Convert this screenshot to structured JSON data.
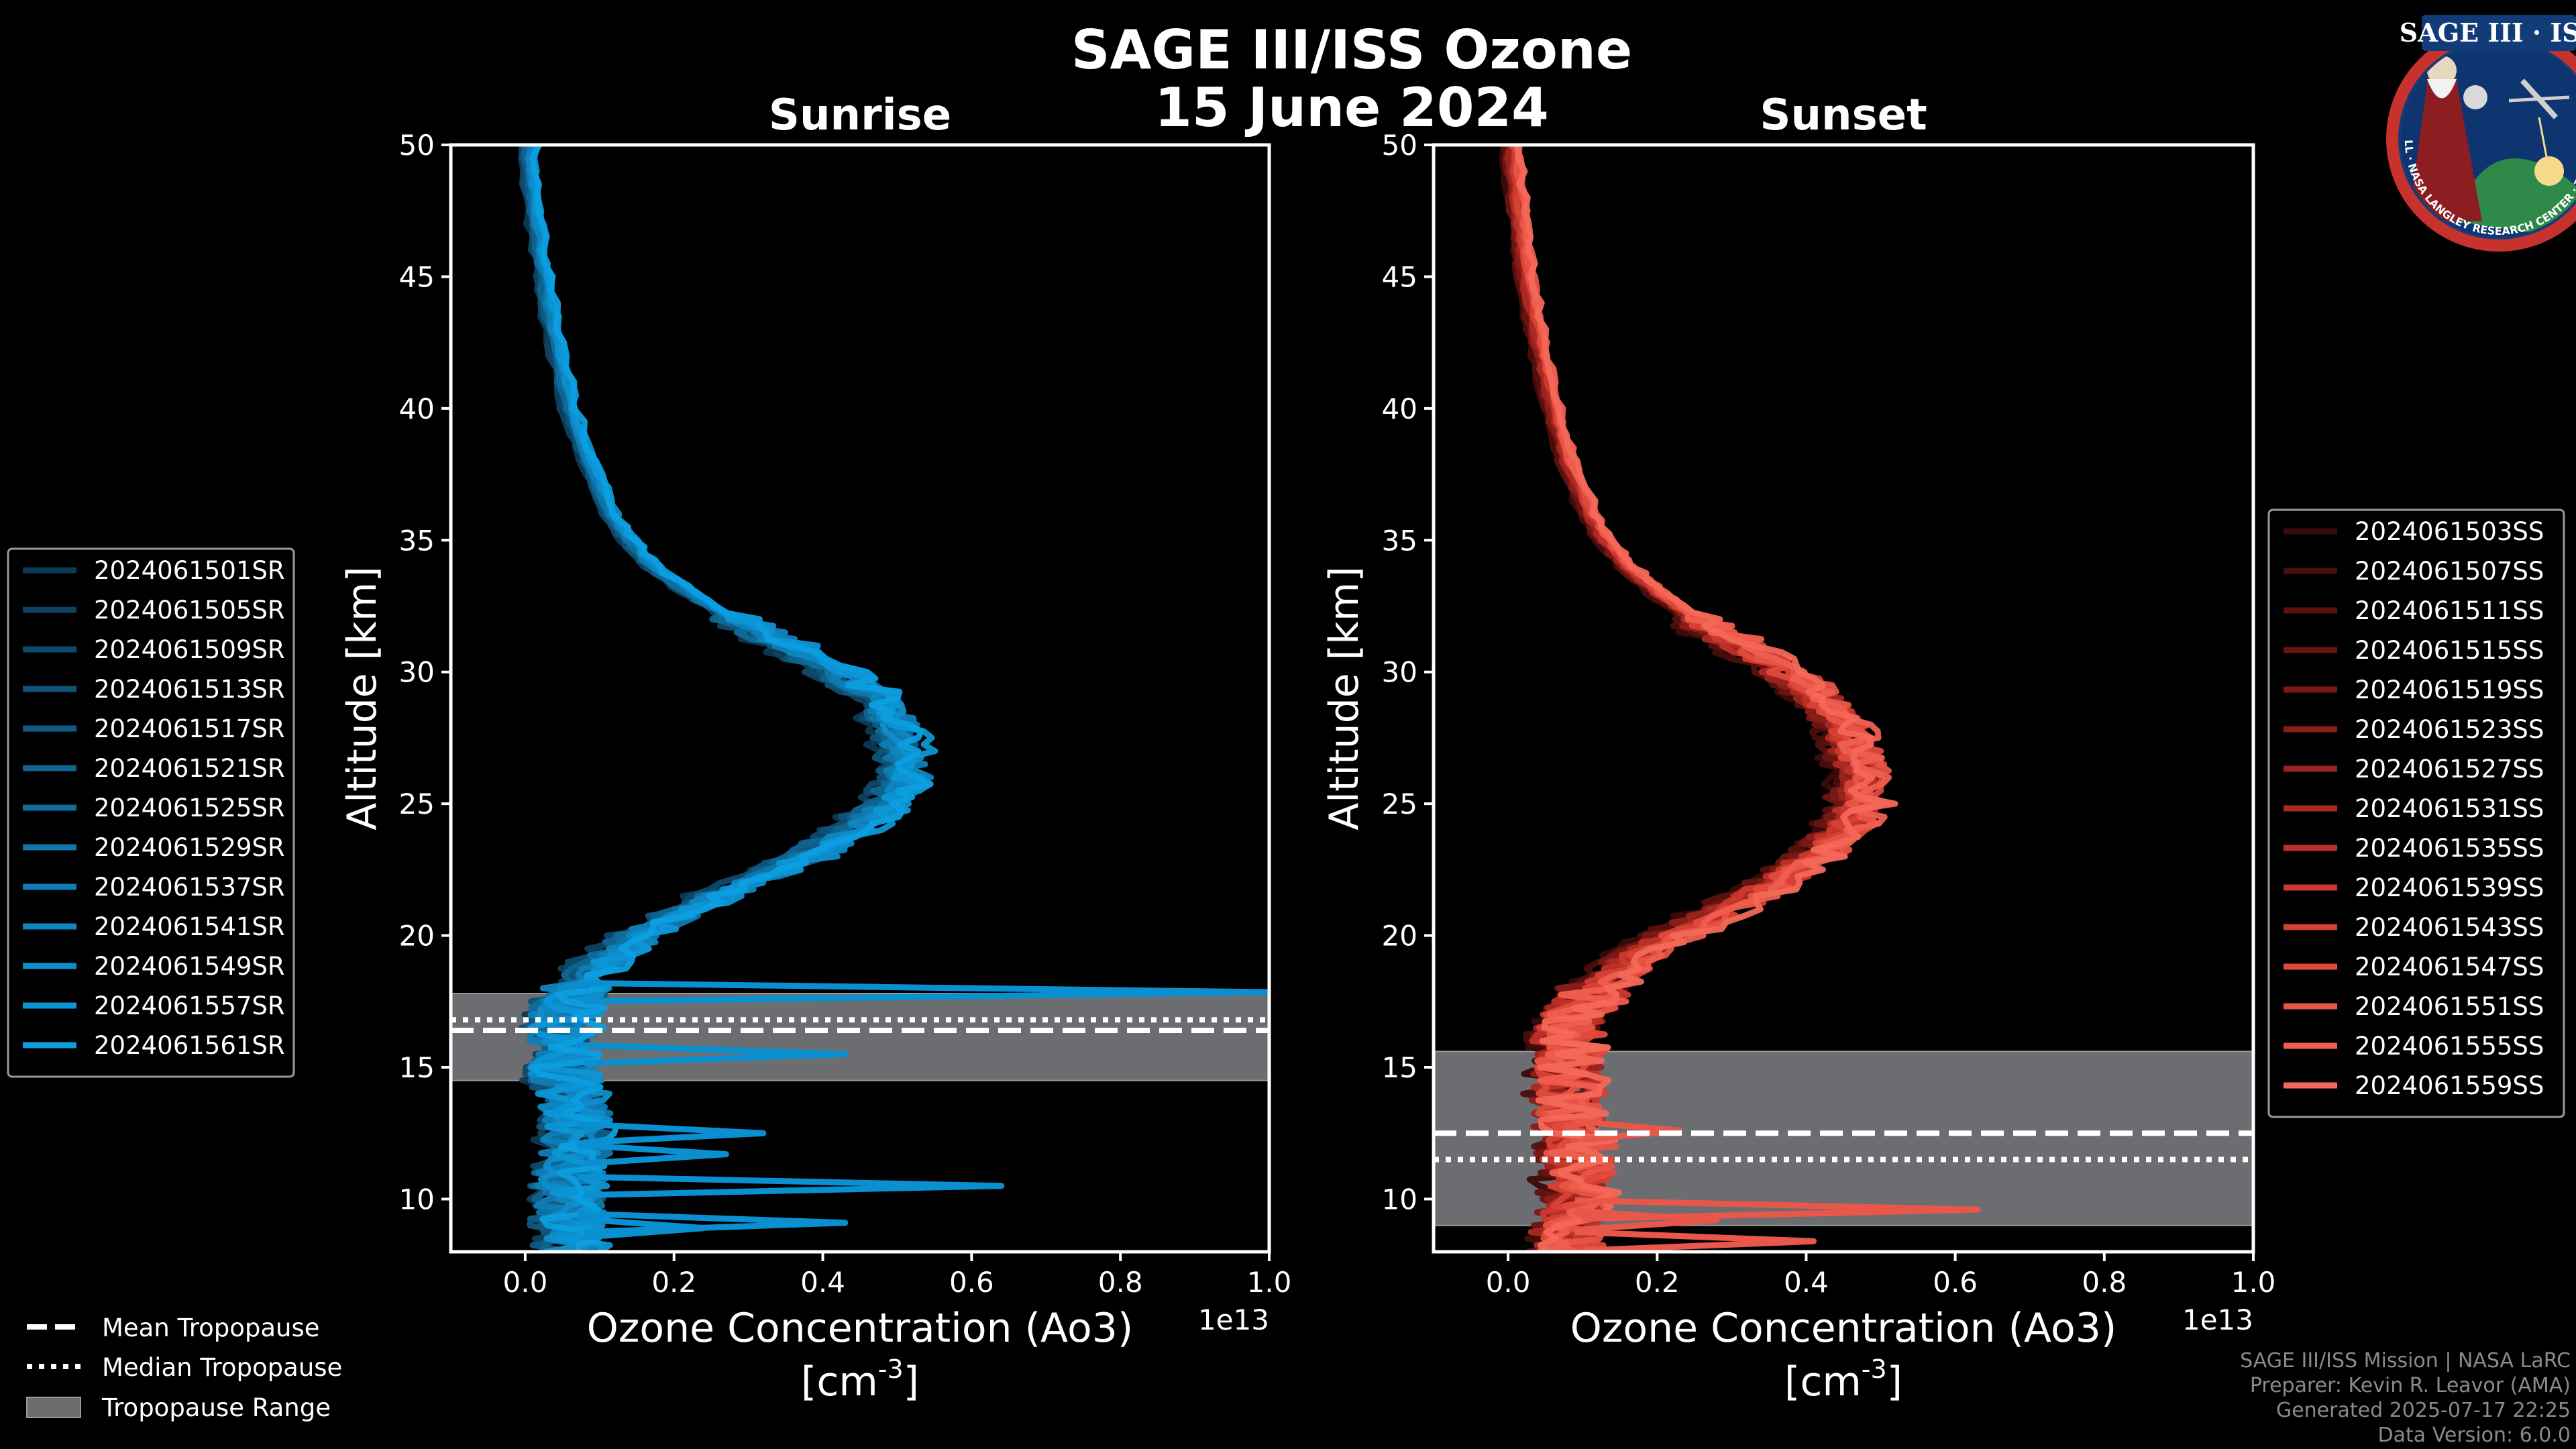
{
  "figure": {
    "title": "SAGE III/ISS Ozone",
    "date": "15 June 2024"
  },
  "chart_data": [
    {
      "type": "line",
      "title": "Sunrise",
      "xlabel": "Ozone Concentration (Ao3)",
      "xunit": "[cm",
      "xunit_exp": "-3",
      "xunit_close": "]",
      "ylabel": "Altitude [km]",
      "xlim": [
        -0.1,
        1.0
      ],
      "ylim": [
        8,
        50
      ],
      "xticks": [
        0.0,
        0.2,
        0.4,
        0.6,
        0.8,
        1.0
      ],
      "xtick_labels": [
        "0.0",
        "0.2",
        "0.4",
        "0.6",
        "0.8",
        "1.0"
      ],
      "yticks": [
        10,
        15,
        20,
        25,
        30,
        35,
        40,
        45,
        50
      ],
      "ytick_labels": [
        "10",
        "15",
        "20",
        "25",
        "30",
        "35",
        "40",
        "45",
        "50"
      ],
      "offset_label": "1e13",
      "line_color": "#0a8fd0",
      "tropopause": {
        "min": 14.5,
        "max": 17.8,
        "mean": 16.4,
        "median": 16.8
      },
      "series": [
        {
          "name": "2024061501SR",
          "color": "#0d3a55"
        },
        {
          "name": "2024061505SR",
          "color": "#0e4260"
        },
        {
          "name": "2024061509SR",
          "color": "#0f4a6c"
        },
        {
          "name": "2024061513SR",
          "color": "#0f5378"
        },
        {
          "name": "2024061517SR",
          "color": "#105b84"
        },
        {
          "name": "2024061521SR",
          "color": "#106490"
        },
        {
          "name": "2024061525SR",
          "color": "#106c9c"
        },
        {
          "name": "2024061529SR",
          "color": "#1075a8"
        },
        {
          "name": "2024061537SR",
          "color": "#107db4"
        },
        {
          "name": "2024061541SR",
          "color": "#0f86c0"
        },
        {
          "name": "2024061549SR",
          "color": "#0e8ecb"
        },
        {
          "name": "2024061557SR",
          "color": "#0d96d6"
        },
        {
          "name": "2024061561SR",
          "color": "#0c9ee0"
        }
      ],
      "base_profile": {
        "altitude": [
          50,
          48,
          46,
          44,
          42,
          40,
          38,
          36,
          35,
          34,
          33,
          32,
          31,
          30,
          29,
          28,
          27,
          26,
          25,
          24,
          23,
          22,
          21,
          20,
          19,
          18,
          17,
          16,
          15,
          14,
          13,
          12,
          11,
          10,
          9,
          8
        ],
        "ozone": [
          0.005,
          0.01,
          0.02,
          0.03,
          0.045,
          0.06,
          0.085,
          0.115,
          0.14,
          0.17,
          0.22,
          0.28,
          0.35,
          0.42,
          0.47,
          0.5,
          0.51,
          0.51,
          0.49,
          0.44,
          0.38,
          0.3,
          0.22,
          0.15,
          0.1,
          0.07,
          0.05,
          0.05,
          0.05,
          0.06,
          0.07,
          0.07,
          0.06,
          0.06,
          0.06,
          0.06
        ]
      },
      "spikes": [
        {
          "altitude": 17.85,
          "ozone": 1.0
        },
        {
          "altitude": 15.5,
          "ozone": 0.43
        },
        {
          "altitude": 10.5,
          "ozone": 0.64
        },
        {
          "altitude": 12.5,
          "ozone": 0.32
        },
        {
          "altitude": 9.1,
          "ozone": 0.43
        },
        {
          "altitude": 11.7,
          "ozone": 0.27
        },
        {
          "altitude": 8.9,
          "ozone": 0.24
        }
      ]
    },
    {
      "type": "line",
      "title": "Sunset",
      "xlabel": "Ozone Concentration (Ao3)",
      "xunit": "[cm",
      "xunit_exp": "-3",
      "xunit_close": "]",
      "ylabel": "Altitude [km]",
      "xlim": [
        -0.1,
        1.0
      ],
      "ylim": [
        8,
        50
      ],
      "xticks": [
        0.0,
        0.2,
        0.4,
        0.6,
        0.8,
        1.0
      ],
      "xtick_labels": [
        "0.0",
        "0.2",
        "0.4",
        "0.6",
        "0.8",
        "1.0"
      ],
      "yticks": [
        10,
        15,
        20,
        25,
        30,
        35,
        40,
        45,
        50
      ],
      "ytick_labels": [
        "10",
        "15",
        "20",
        "25",
        "30",
        "35",
        "40",
        "45",
        "50"
      ],
      "offset_label": "1e13",
      "line_color": "#e8574a",
      "tropopause": {
        "min": 9.0,
        "max": 15.6,
        "mean": 12.5,
        "median": 11.5
      },
      "series": [
        {
          "name": "2024061503SS",
          "color": "#3b0b09"
        },
        {
          "name": "2024061507SS",
          "color": "#4a0e0c"
        },
        {
          "name": "2024061511SS",
          "color": "#5a110f"
        },
        {
          "name": "2024061515SS",
          "color": "#6a1512"
        },
        {
          "name": "2024061519SS",
          "color": "#7b1915"
        },
        {
          "name": "2024061523SS",
          "color": "#8c1e19"
        },
        {
          "name": "2024061527SS",
          "color": "#9c241d"
        },
        {
          "name": "2024061531SS",
          "color": "#ad2a22"
        },
        {
          "name": "2024061535SS",
          "color": "#bc3128"
        },
        {
          "name": "2024061539SS",
          "color": "#ca392e"
        },
        {
          "name": "2024061543SS",
          "color": "#d64135"
        },
        {
          "name": "2024061547SS",
          "color": "#e04a3d"
        },
        {
          "name": "2024061551SS",
          "color": "#e85446"
        },
        {
          "name": "2024061555SS",
          "color": "#ef5e4f"
        },
        {
          "name": "2024061559SS",
          "color": "#f36858"
        }
      ],
      "base_profile": {
        "altitude": [
          50,
          48,
          46,
          44,
          42,
          40,
          38,
          36,
          35,
          34,
          33,
          32,
          31,
          30,
          29,
          28,
          27,
          26,
          25,
          24,
          23,
          22,
          21,
          20,
          19,
          18,
          17,
          16,
          15,
          14,
          13,
          12,
          11,
          10,
          9,
          8
        ],
        "ozone": [
          0.005,
          0.012,
          0.02,
          0.03,
          0.045,
          0.06,
          0.08,
          0.11,
          0.13,
          0.16,
          0.2,
          0.25,
          0.31,
          0.37,
          0.42,
          0.45,
          0.46,
          0.47,
          0.47,
          0.45,
          0.41,
          0.36,
          0.29,
          0.22,
          0.16,
          0.12,
          0.09,
          0.08,
          0.08,
          0.08,
          0.08,
          0.09,
          0.09,
          0.09,
          0.08,
          0.08
        ]
      },
      "spikes": [
        {
          "altitude": 9.6,
          "ozone": 0.63
        },
        {
          "altitude": 8.4,
          "ozone": 0.41
        },
        {
          "altitude": 12.6,
          "ozone": 0.23
        },
        {
          "altitude": 9.2,
          "ozone": 0.28
        }
      ]
    }
  ],
  "tropopause_legend": {
    "mean": "Mean Tropopause",
    "median": "Median Tropopause",
    "range": "Tropopause Range"
  },
  "credits": {
    "line1": "SAGE III/ISS Mission | NASA LaRC",
    "line2": "Preparer: Kevin R. Leavor (AMA)",
    "line3": "Generated 2025-07-17 22:25",
    "line4": "Data Version: 6.0.0"
  },
  "logo": {
    "title": "SAGE III · ISS",
    "ring_text": "BALL · NASA LANGLEY RESEARCH CENTER · TAS-I · ESA"
  },
  "colors": {
    "background": "#000000",
    "tropopause_fill": "#6b6d70",
    "axis": "#ffffff"
  }
}
